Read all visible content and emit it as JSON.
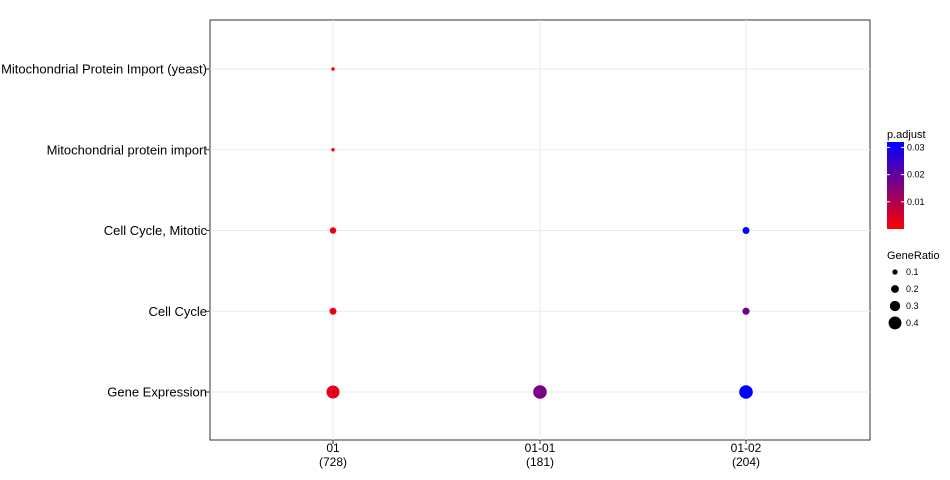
{
  "chart_data": {
    "type": "scatter",
    "categories_x": [
      {
        "label": "01",
        "count": "(728)"
      },
      {
        "label": "01-01",
        "count": "(181)"
      },
      {
        "label": "01-02",
        "count": "(204)"
      }
    ],
    "categories_y": [
      "Gene Expression",
      "Cell Cycle",
      "Cell Cycle, Mitotic",
      "Mitochondrial protein import",
      "Mitochondrial Protein Import (yeast)"
    ],
    "points": [
      {
        "x": "01",
        "y": "Mitochondrial Protein Import (yeast)",
        "gene_ratio": 0.02,
        "p_adjust": 0.0008
      },
      {
        "x": "01",
        "y": "Mitochondrial protein import",
        "gene_ratio": 0.02,
        "p_adjust": 0.0008
      },
      {
        "x": "01",
        "y": "Cell Cycle, Mitotic",
        "gene_ratio": 0.13,
        "p_adjust": 0.002
      },
      {
        "x": "01",
        "y": "Cell Cycle",
        "gene_ratio": 0.15,
        "p_adjust": 0.002
      },
      {
        "x": "01",
        "y": "Gene Expression",
        "gene_ratio": 0.38,
        "p_adjust": 0.003
      },
      {
        "x": "01-01",
        "y": "Gene Expression",
        "gene_ratio": 0.4,
        "p_adjust": 0.017
      },
      {
        "x": "01-02",
        "y": "Cell Cycle, Mitotic",
        "gene_ratio": 0.15,
        "p_adjust": 0.032
      },
      {
        "x": "01-02",
        "y": "Cell Cycle",
        "gene_ratio": 0.16,
        "p_adjust": 0.018
      },
      {
        "x": "01-02",
        "y": "Gene Expression",
        "gene_ratio": 0.4,
        "p_adjust": 0.032
      }
    ],
    "color_legend": {
      "title": "p.adjust",
      "ticks": [
        {
          "value": 0.01,
          "label": "0.01"
        },
        {
          "value": 0.02,
          "label": "0.02"
        },
        {
          "value": 0.03,
          "label": "0.03"
        }
      ],
      "range": [
        0.0,
        0.032
      ],
      "low_color": "#ff0000",
      "high_color": "#0000ff"
    },
    "size_legend": {
      "title": "GeneRatio",
      "entries": [
        {
          "value": 0.1,
          "label": "0.1"
        },
        {
          "value": 0.2,
          "label": "0.2"
        },
        {
          "value": 0.3,
          "label": "0.3"
        },
        {
          "value": 0.4,
          "label": "0.4"
        }
      ]
    },
    "grid": true
  }
}
